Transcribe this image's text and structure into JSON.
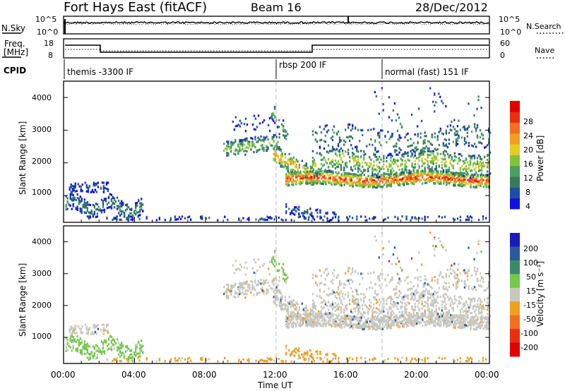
{
  "header": {
    "station": "Fort Hays East (fitACF)",
    "beam": "Beam 16",
    "date": "28/Dec/2012"
  },
  "noise_panel": {
    "left_label": "N.Sky",
    "left_ticks": [
      "10^5",
      "10^0"
    ],
    "right_label": "N.Search",
    "right_ticks": [
      "10^5",
      "10^0"
    ]
  },
  "freq_panel": {
    "left_label_line1": "Freq.",
    "left_label_line2": "[MHz]",
    "left_ticks": [
      "18",
      "8"
    ],
    "right_label": "Nave",
    "right_ticks": [
      "60",
      "0"
    ]
  },
  "cpid": {
    "label": "CPID",
    "segments": [
      {
        "start_hour": 0,
        "text": "themis -3300 IF"
      },
      {
        "start_hour": 12,
        "text": "rbsp 200 IF"
      },
      {
        "start_hour": 18,
        "text": "normal (fast) 151 IF"
      }
    ]
  },
  "x_axis": {
    "label": "Time UT",
    "tick_labels": [
      "00:00",
      "04:00",
      "08:00",
      "12:00",
      "16:00",
      "20:00",
      "00:00"
    ]
  },
  "colors": {
    "power_scale": [
      "#1010e0",
      "#1e4da8",
      "#3a7a5a",
      "#4aa060",
      "#7fc43a",
      "#e6cc22",
      "#f0a020",
      "#f07020",
      "#e83010",
      "#e00000"
    ],
    "velocity_scale": [
      "#1a1ab8",
      "#2a5a9a",
      "#3a8a6a",
      "#74c84a",
      "#c8c8c0",
      "#f0a020",
      "#f07020",
      "#e83010",
      "#e00000"
    ],
    "dashed_markers": "#bbbbbb"
  },
  "chart_data": [
    {
      "type": "heatmap",
      "name": "power",
      "ylabel": "Slant Range [km]",
      "xlabel": "",
      "xlim": [
        0,
        24
      ],
      "ylim": [
        180,
        4500
      ],
      "y_tick_labels": [
        "1000",
        "2000",
        "3000",
        "4000"
      ],
      "colorbar": {
        "label": "Power [dB]",
        "ticks": [
          "28",
          "24",
          "20",
          "16",
          "12",
          "8",
          "4"
        ],
        "range": [
          0,
          30
        ]
      },
      "data_mode": "synthetic_mask_approximation"
    },
    {
      "type": "heatmap",
      "name": "velocity",
      "ylabel": "Slant Range [km]",
      "xlabel": "Time UT",
      "xlim": [
        0,
        24
      ],
      "ylim": [
        180,
        4500
      ],
      "y_tick_labels": [
        "1000",
        "2000",
        "3000",
        "4000"
      ],
      "colorbar": {
        "label": "Velocity [m s⁻¹]",
        "ticks": [
          "200",
          "100",
          "50",
          "15",
          "-15",
          "-50",
          "-100",
          "-200"
        ],
        "range": [
          -240,
          240
        ]
      },
      "data_mode": "synthetic_mask_approximation"
    }
  ]
}
